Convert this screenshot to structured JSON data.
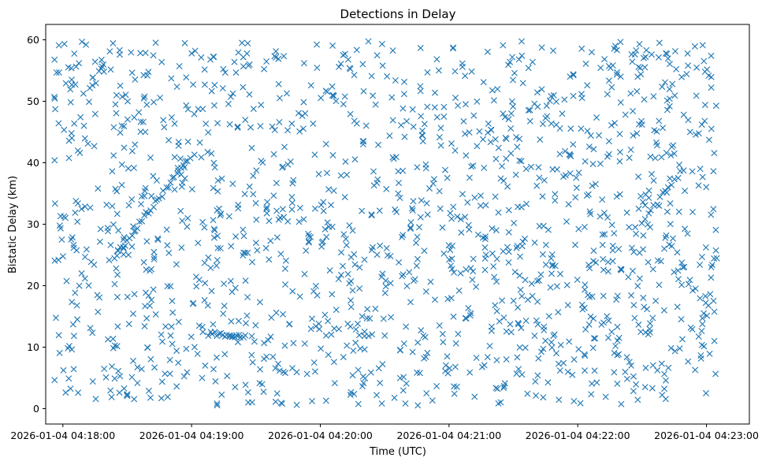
{
  "chart_data": {
    "type": "scatter",
    "title": "Detections in Delay",
    "xlabel": "Time (UTC)",
    "ylabel": "Bistatic Delay (km)",
    "marker": "x",
    "color": "#1f77b4",
    "grid": false,
    "xlim": [
      "2026-01-04 04:17:52",
      "2026-01-04 04:23:20"
    ],
    "ylim": [
      -2.5,
      62.5
    ],
    "x_ticks": [
      "2026-01-04 04:18:00",
      "2026-01-04 04:19:00",
      "2026-01-04 04:20:00",
      "2026-01-04 04:21:00",
      "2026-01-04 04:22:00",
      "2026-01-04 04:23:00"
    ],
    "y_ticks": [
      0,
      10,
      20,
      30,
      40,
      50,
      60
    ],
    "x_range": [
      "2026-01-04 04:17:56",
      "2026-01-04 04:23:05"
    ],
    "y_range": [
      0.5,
      59.8
    ],
    "n_random_points": 1500,
    "tracks": [
      {
        "start": [
          "2026-01-04 04:18:24",
          24.5
        ],
        "end": [
          "2026-01-04 04:18:58",
          40.5
        ],
        "points": 35
      },
      {
        "start": [
          "2026-01-04 04:19:08",
          12.2
        ],
        "end": [
          "2026-01-04 04:19:24",
          11.8
        ],
        "points": 18
      },
      {
        "start": [
          "2026-01-04 04:22:30",
          30.5
        ],
        "end": [
          "2026-01-04 04:22:48",
          38.5
        ],
        "points": 14
      }
    ]
  }
}
